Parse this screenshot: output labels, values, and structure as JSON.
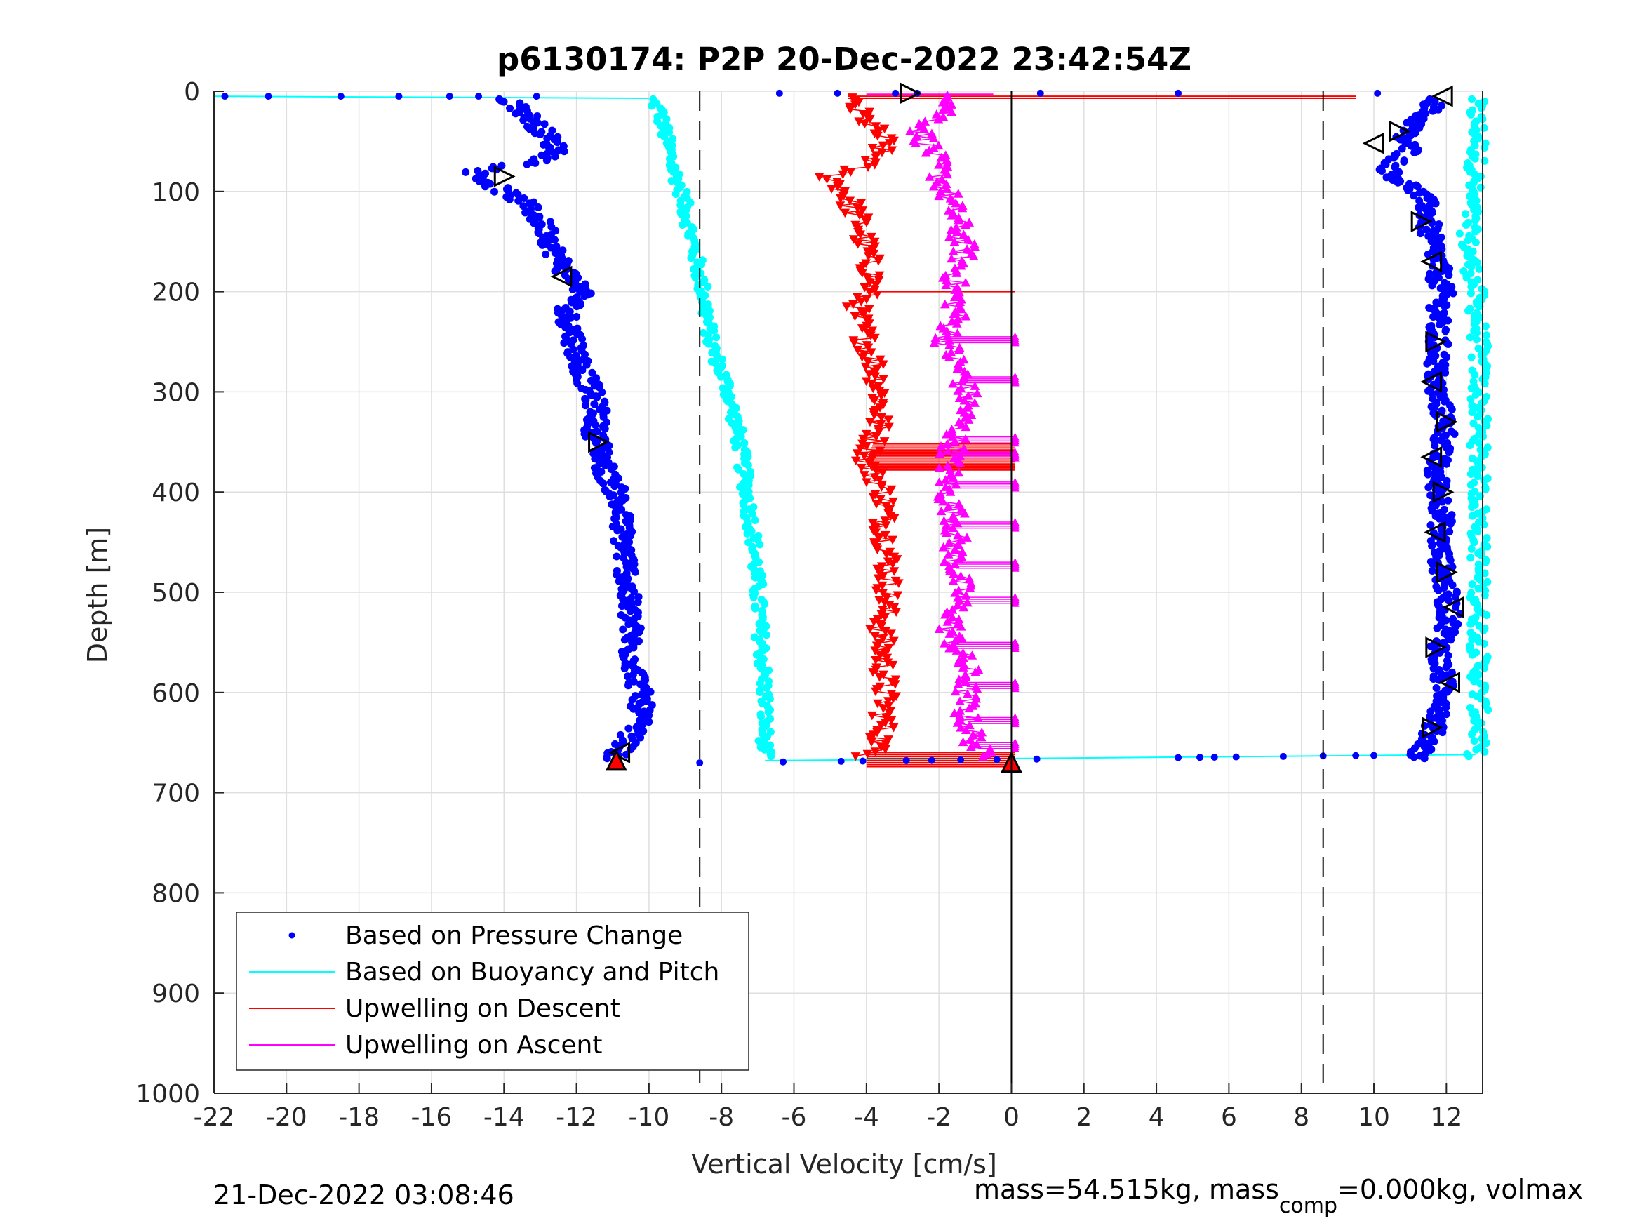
{
  "chart_data": {
    "type": "scatter",
    "title": "p6130174: P2P 20-Dec-2022 23:42:54Z",
    "xlabel": "Vertical Velocity [cm/s]",
    "ylabel": "Depth [m]",
    "xlim": [
      -22,
      13
    ],
    "ylim": [
      0,
      1000
    ],
    "y_reversed": true,
    "grid": true,
    "x_ticks": [
      -22,
      -20,
      -18,
      -16,
      -14,
      -12,
      -10,
      -8,
      -6,
      -4,
      -2,
      0,
      2,
      4,
      6,
      8,
      10,
      12
    ],
    "y_ticks": [
      0,
      100,
      200,
      300,
      400,
      500,
      600,
      700,
      800,
      900,
      1000
    ],
    "reference_lines": {
      "dashed_x": [
        -8.6,
        8.6
      ],
      "solid_x": [
        0
      ]
    },
    "legend": {
      "placement": "bottom-left",
      "entries": [
        {
          "label": "Based on Pressure Change",
          "color": "#0000ff",
          "style": "dot"
        },
        {
          "label": "Based on Buoyancy and Pitch",
          "color": "#00ffff",
          "style": "line"
        },
        {
          "label": "Upwelling on Descent",
          "color": "#ff0000",
          "style": "line"
        },
        {
          "label": "Upwelling on Ascent",
          "color": "#ff00ff",
          "style": "line"
        }
      ]
    },
    "series": [
      {
        "name": "Based on Pressure Change",
        "color": "#0000ff",
        "marker": "dot",
        "depth": [
          5,
          15,
          30,
          45,
          60,
          70,
          80,
          90,
          100,
          110,
          120,
          140,
          160,
          180,
          190,
          200,
          220,
          240,
          260,
          280,
          300,
          320,
          340,
          360,
          380,
          400,
          420,
          450,
          480,
          500,
          530,
          560,
          590,
          610,
          630,
          650,
          665
        ],
        "descent_velocity": [
          -14,
          -13.6,
          -13.2,
          -12.8,
          -12.5,
          -13.0,
          -14.8,
          -14.5,
          -14.0,
          -13.5,
          -13.2,
          -12.8,
          -12.6,
          -12.3,
          -12.0,
          -11.8,
          -12.3,
          -12.1,
          -12.0,
          -11.8,
          -11.6,
          -11.4,
          -11.5,
          -11.3,
          -11.2,
          -10.9,
          -10.8,
          -10.7,
          -10.6,
          -10.6,
          -10.5,
          -10.5,
          -10.3,
          -10.2,
          -10.3,
          -10.6,
          -11.0
        ],
        "ascent_velocity": [
          11.9,
          11.6,
          11.2,
          10.8,
          11.0,
          10.6,
          10.4,
          10.8,
          11.2,
          11.4,
          11.5,
          11.5,
          11.7,
          11.8,
          11.8,
          11.9,
          11.8,
          11.7,
          11.8,
          11.7,
          11.7,
          11.9,
          12.0,
          11.8,
          11.7,
          11.8,
          11.9,
          11.8,
          11.9,
          12.0,
          12.1,
          11.8,
          11.9,
          12.0,
          11.7,
          11.5,
          11.2
        ]
      },
      {
        "name": "Based on Buoyancy and Pitch",
        "color": "#00ffff",
        "marker": "line",
        "depth": [
          5,
          20,
          50,
          80,
          100,
          150,
          200,
          250,
          300,
          350,
          400,
          450,
          500,
          550,
          600,
          640,
          665
        ],
        "descent_velocity": [
          -10.0,
          -9.7,
          -9.5,
          -9.3,
          -9.1,
          -8.8,
          -8.5,
          -8.3,
          -7.8,
          -7.5,
          -7.3,
          -7.1,
          -7.0,
          -6.9,
          -6.8,
          -6.8,
          -6.8
        ],
        "ascent_velocity": [
          12.8,
          12.8,
          12.9,
          12.8,
          12.7,
          12.6,
          12.8,
          12.9,
          12.9,
          12.9,
          12.9,
          12.9,
          12.9,
          12.9,
          12.9,
          12.9,
          12.8
        ]
      },
      {
        "name": "Upwelling on Descent",
        "color": "#ff0000",
        "marker": "triangle-down",
        "depth": [
          10,
          30,
          50,
          70,
          85,
          100,
          130,
          160,
          190,
          220,
          250,
          280,
          310,
          340,
          370,
          400,
          430,
          460,
          500,
          540,
          580,
          620,
          650,
          665
        ],
        "values": [
          -4.5,
          -4.0,
          -3.5,
          -3.8,
          -5.0,
          -4.6,
          -4.2,
          -4.0,
          -3.8,
          -4.3,
          -4.0,
          -3.7,
          -3.6,
          -3.7,
          -4.0,
          -3.5,
          -3.5,
          -3.4,
          -3.4,
          -3.6,
          -3.5,
          -3.5,
          -3.6,
          -4.0
        ]
      },
      {
        "name": "Upwelling on Ascent",
        "color": "#ff00ff",
        "marker": "triangle-up",
        "depth": [
          5,
          20,
          40,
          60,
          80,
          100,
          130,
          160,
          190,
          220,
          250,
          280,
          310,
          340,
          370,
          400,
          430,
          460,
          500,
          540,
          580,
          620,
          650,
          665
        ],
        "values": [
          -1.5,
          -1.8,
          -2.5,
          -2.2,
          -2.0,
          -1.8,
          -1.5,
          -1.3,
          -1.6,
          -1.5,
          -1.8,
          -1.4,
          -1.2,
          -1.5,
          -1.7,
          -1.8,
          -1.5,
          -1.6,
          -1.4,
          -1.7,
          -1.2,
          -1.3,
          -1.0,
          -0.8
        ]
      }
    ],
    "markers": {
      "open_triangles_descent": [
        {
          "x": -14.0,
          "y": 85
        },
        {
          "x": -12.4,
          "y": 185
        },
        {
          "x": -11.4,
          "y": 350
        },
        {
          "x": -10.8,
          "y": 660
        },
        {
          "x": -2.8,
          "y": 2
        }
      ],
      "open_triangles_ascent": [
        {
          "x": 11.9,
          "y": 5
        },
        {
          "x": 10.7,
          "y": 40
        },
        {
          "x": 10.0,
          "y": 52
        },
        {
          "x": 11.3,
          "y": 130
        },
        {
          "x": 11.6,
          "y": 170
        },
        {
          "x": 11.7,
          "y": 250
        },
        {
          "x": 11.6,
          "y": 290
        },
        {
          "x": 12.0,
          "y": 330
        },
        {
          "x": 11.6,
          "y": 365
        },
        {
          "x": 11.9,
          "y": 400
        },
        {
          "x": 11.7,
          "y": 440
        },
        {
          "x": 12.0,
          "y": 480
        },
        {
          "x": 12.2,
          "y": 515
        },
        {
          "x": 11.7,
          "y": 555
        },
        {
          "x": 12.1,
          "y": 590
        },
        {
          "x": 11.6,
          "y": 635
        }
      ],
      "filled_red_triangles": [
        {
          "x": -10.9,
          "y": 668
        },
        {
          "x": 0.0,
          "y": 670
        }
      ]
    },
    "transitions": {
      "surface_depth": 5,
      "bottom_depth": 668,
      "surface_line_x": [
        -22,
        -10.0
      ],
      "bottom_line_x": [
        -6.8,
        12.8
      ]
    }
  },
  "footer": {
    "timestamp": "21-Dec-2022 03:08:46",
    "mass_prefix": "mass=54.515kg, mass",
    "mass_sub": "comp",
    "mass_suffix": "=0.000kg, volmax"
  }
}
